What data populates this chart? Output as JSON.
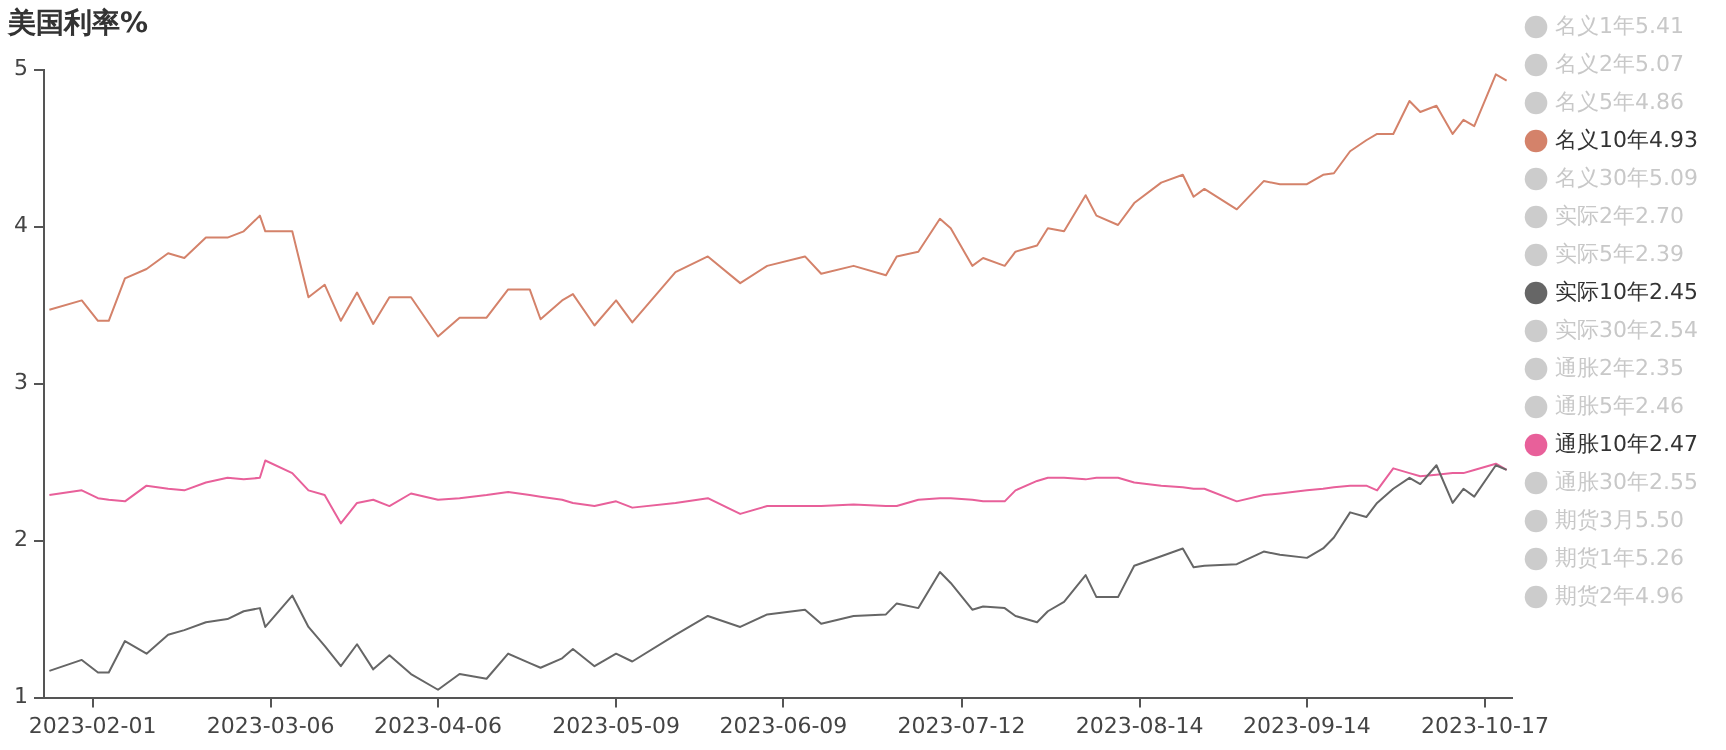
{
  "chart_data": {
    "type": "line",
    "title": "美国利率%",
    "marker": "none",
    "line_style": "solid",
    "grid": false,
    "legend": "right",
    "xlim": [
      "2023-01-23",
      "2023-10-22"
    ],
    "xticks": [
      "2023-02-01",
      "2023-03-06",
      "2023-04-06",
      "2023-05-09",
      "2023-06-09",
      "2023-07-12",
      "2023-08-14",
      "2023-09-14",
      "2023-10-17"
    ],
    "ylim": [
      1,
      5
    ],
    "yticks": [
      1,
      2,
      3,
      4,
      5
    ],
    "x": [
      "2023-01-24",
      "2023-01-30",
      "2023-02-02",
      "2023-02-04",
      "2023-02-07",
      "2023-02-11",
      "2023-02-15",
      "2023-02-18",
      "2023-02-22",
      "2023-02-26",
      "2023-03-01",
      "2023-03-04",
      "2023-03-05",
      "2023-03-10",
      "2023-03-13",
      "2023-03-16",
      "2023-03-19",
      "2023-03-22",
      "2023-03-25",
      "2023-03-28",
      "2023-04-01",
      "2023-04-06",
      "2023-04-10",
      "2023-04-15",
      "2023-04-19",
      "2023-04-23",
      "2023-04-25",
      "2023-04-29",
      "2023-05-01",
      "2023-05-05",
      "2023-05-09",
      "2023-05-12",
      "2023-05-20",
      "2023-05-26",
      "2023-06-01",
      "2023-06-06",
      "2023-06-13",
      "2023-06-16",
      "2023-06-22",
      "2023-06-28",
      "2023-06-30",
      "2023-07-04",
      "2023-07-08",
      "2023-07-10",
      "2023-07-14",
      "2023-07-16",
      "2023-07-20",
      "2023-07-22",
      "2023-07-26",
      "2023-07-28",
      "2023-07-31",
      "2023-08-04",
      "2023-08-06",
      "2023-08-10",
      "2023-08-13",
      "2023-08-18",
      "2023-08-22",
      "2023-08-24",
      "2023-08-26",
      "2023-09-01",
      "2023-09-06",
      "2023-09-09",
      "2023-09-14",
      "2023-09-17",
      "2023-09-19",
      "2023-09-22",
      "2023-09-25",
      "2023-09-27",
      "2023-09-30",
      "2023-10-03",
      "2023-10-05",
      "2023-10-08",
      "2023-10-11",
      "2023-10-13",
      "2023-10-15",
      "2023-10-19",
      "2023-10-21"
    ],
    "series": [
      {
        "name": "名义1年5.41",
        "color": "#cccccc",
        "values": [
          null,
          null,
          null,
          null,
          null,
          null,
          null,
          null,
          null,
          null,
          null,
          null,
          null,
          null,
          null,
          null,
          null,
          null,
          null,
          null,
          null,
          null,
          null,
          null,
          null,
          null,
          null,
          null,
          null,
          null,
          null,
          null,
          null,
          null,
          null,
          null,
          null,
          null,
          null,
          null,
          null,
          null,
          null,
          null,
          null,
          null,
          null,
          null,
          null,
          null,
          null,
          null,
          null,
          null,
          null,
          null,
          null,
          null,
          null,
          null,
          null,
          null,
          null,
          null,
          null,
          null,
          null,
          null,
          null,
          null,
          null,
          null,
          null,
          null,
          null,
          null,
          null
        ]
      },
      {
        "name": "名义2年5.07",
        "color": "#cccccc",
        "values": [
          null,
          null,
          null,
          null,
          null,
          null,
          null,
          null,
          null,
          null,
          null,
          null,
          null,
          null,
          null,
          null,
          null,
          null,
          null,
          null,
          null,
          null,
          null,
          null,
          null,
          null,
          null,
          null,
          null,
          null,
          null,
          null,
          null,
          null,
          null,
          null,
          null,
          null,
          null,
          null,
          null,
          null,
          null,
          null,
          null,
          null,
          null,
          null,
          null,
          null,
          null,
          null,
          null,
          null,
          null,
          null,
          null,
          null,
          null,
          null,
          null,
          null,
          null,
          null,
          null,
          null,
          null,
          null,
          null,
          null,
          null,
          null,
          null,
          null,
          null,
          null,
          null
        ]
      },
      {
        "name": "名义5年4.86",
        "color": "#cccccc",
        "values": [
          null,
          null,
          null,
          null,
          null,
          null,
          null,
          null,
          null,
          null,
          null,
          null,
          null,
          null,
          null,
          null,
          null,
          null,
          null,
          null,
          null,
          null,
          null,
          null,
          null,
          null,
          null,
          null,
          null,
          null,
          null,
          null,
          null,
          null,
          null,
          null,
          null,
          null,
          null,
          null,
          null,
          null,
          null,
          null,
          null,
          null,
          null,
          null,
          null,
          null,
          null,
          null,
          null,
          null,
          null,
          null,
          null,
          null,
          null,
          null,
          null,
          null,
          null,
          null,
          null,
          null,
          null,
          null,
          null,
          null,
          null,
          null,
          null,
          null,
          null,
          null,
          null
        ]
      },
      {
        "name": "名义10年4.93",
        "color": "#d4826a",
        "values": [
          3.47,
          3.53,
          3.4,
          3.4,
          3.67,
          3.73,
          3.83,
          3.8,
          3.93,
          3.93,
          3.97,
          4.07,
          3.97,
          3.97,
          3.55,
          3.63,
          3.4,
          3.58,
          3.38,
          3.55,
          3.55,
          3.3,
          3.42,
          3.42,
          3.6,
          3.6,
          3.41,
          3.53,
          3.57,
          3.37,
          3.53,
          3.39,
          3.71,
          3.81,
          3.64,
          3.75,
          3.81,
          3.7,
          3.75,
          3.69,
          3.81,
          3.84,
          4.05,
          3.99,
          3.75,
          3.8,
          3.75,
          3.84,
          3.88,
          3.99,
          3.97,
          4.2,
          4.07,
          4.01,
          4.15,
          4.28,
          4.33,
          4.19,
          4.24,
          4.11,
          4.29,
          4.27,
          4.27,
          4.33,
          4.34,
          4.48,
          4.55,
          4.59,
          4.59,
          4.8,
          4.73,
          4.77,
          4.59,
          4.68,
          4.64,
          4.97,
          4.93
        ]
      },
      {
        "name": "名义30年5.09",
        "color": "#cccccc",
        "values": [
          null,
          null,
          null,
          null,
          null,
          null,
          null,
          null,
          null,
          null,
          null,
          null,
          null,
          null,
          null,
          null,
          null,
          null,
          null,
          null,
          null,
          null,
          null,
          null,
          null,
          null,
          null,
          null,
          null,
          null,
          null,
          null,
          null,
          null,
          null,
          null,
          null,
          null,
          null,
          null,
          null,
          null,
          null,
          null,
          null,
          null,
          null,
          null,
          null,
          null,
          null,
          null,
          null,
          null,
          null,
          null,
          null,
          null,
          null,
          null,
          null,
          null,
          null,
          null,
          null,
          null,
          null,
          null,
          null,
          null,
          null,
          null,
          null,
          null,
          null,
          null,
          null
        ]
      },
      {
        "name": "实际2年2.70",
        "color": "#cccccc",
        "values": [
          null,
          null,
          null,
          null,
          null,
          null,
          null,
          null,
          null,
          null,
          null,
          null,
          null,
          null,
          null,
          null,
          null,
          null,
          null,
          null,
          null,
          null,
          null,
          null,
          null,
          null,
          null,
          null,
          null,
          null,
          null,
          null,
          null,
          null,
          null,
          null,
          null,
          null,
          null,
          null,
          null,
          null,
          null,
          null,
          null,
          null,
          null,
          null,
          null,
          null,
          null,
          null,
          null,
          null,
          null,
          null,
          null,
          null,
          null,
          null,
          null,
          null,
          null,
          null,
          null,
          null,
          null,
          null,
          null,
          null,
          null,
          null,
          null,
          null,
          null,
          null,
          null
        ]
      },
      {
        "name": "实际5年2.39",
        "color": "#cccccc",
        "values": [
          null,
          null,
          null,
          null,
          null,
          null,
          null,
          null,
          null,
          null,
          null,
          null,
          null,
          null,
          null,
          null,
          null,
          null,
          null,
          null,
          null,
          null,
          null,
          null,
          null,
          null,
          null,
          null,
          null,
          null,
          null,
          null,
          null,
          null,
          null,
          null,
          null,
          null,
          null,
          null,
          null,
          null,
          null,
          null,
          null,
          null,
          null,
          null,
          null,
          null,
          null,
          null,
          null,
          null,
          null,
          null,
          null,
          null,
          null,
          null,
          null,
          null,
          null,
          null,
          null,
          null,
          null,
          null,
          null,
          null,
          null,
          null,
          null,
          null,
          null,
          null,
          null
        ]
      },
      {
        "name": "实际10年2.45",
        "color": "#666666",
        "values": [
          1.17,
          1.24,
          1.16,
          1.16,
          1.36,
          1.28,
          1.4,
          1.43,
          1.48,
          1.5,
          1.55,
          1.57,
          1.45,
          1.65,
          1.45,
          1.33,
          1.2,
          1.34,
          1.18,
          1.27,
          1.15,
          1.05,
          1.15,
          1.12,
          1.28,
          1.22,
          1.19,
          1.25,
          1.31,
          1.2,
          1.28,
          1.23,
          1.4,
          1.52,
          1.45,
          1.53,
          1.56,
          1.47,
          1.52,
          1.53,
          1.6,
          1.57,
          1.8,
          1.73,
          1.56,
          1.58,
          1.57,
          1.52,
          1.48,
          1.55,
          1.61,
          1.78,
          1.64,
          1.64,
          1.84,
          1.9,
          1.95,
          1.83,
          1.84,
          1.85,
          1.93,
          1.91,
          1.89,
          1.95,
          2.02,
          2.18,
          2.15,
          2.24,
          2.33,
          2.4,
          2.36,
          2.48,
          2.24,
          2.33,
          2.28,
          2.48,
          2.45
        ]
      },
      {
        "name": "实际30年2.54",
        "color": "#cccccc",
        "values": [
          null,
          null,
          null,
          null,
          null,
          null,
          null,
          null,
          null,
          null,
          null,
          null,
          null,
          null,
          null,
          null,
          null,
          null,
          null,
          null,
          null,
          null,
          null,
          null,
          null,
          null,
          null,
          null,
          null,
          null,
          null,
          null,
          null,
          null,
          null,
          null,
          null,
          null,
          null,
          null,
          null,
          null,
          null,
          null,
          null,
          null,
          null,
          null,
          null,
          null,
          null,
          null,
          null,
          null,
          null,
          null,
          null,
          null,
          null,
          null,
          null,
          null,
          null,
          null,
          null,
          null,
          null,
          null,
          null,
          null,
          null,
          null,
          null,
          null,
          null,
          null,
          null
        ]
      },
      {
        "name": "通胀2年2.35",
        "color": "#cccccc",
        "values": [
          null,
          null,
          null,
          null,
          null,
          null,
          null,
          null,
          null,
          null,
          null,
          null,
          null,
          null,
          null,
          null,
          null,
          null,
          null,
          null,
          null,
          null,
          null,
          null,
          null,
          null,
          null,
          null,
          null,
          null,
          null,
          null,
          null,
          null,
          null,
          null,
          null,
          null,
          null,
          null,
          null,
          null,
          null,
          null,
          null,
          null,
          null,
          null,
          null,
          null,
          null,
          null,
          null,
          null,
          null,
          null,
          null,
          null,
          null,
          null,
          null,
          null,
          null,
          null,
          null,
          null,
          null,
          null,
          null,
          null,
          null,
          null,
          null,
          null,
          null,
          null,
          null
        ]
      },
      {
        "name": "通胀5年2.46",
        "color": "#cccccc",
        "values": [
          null,
          null,
          null,
          null,
          null,
          null,
          null,
          null,
          null,
          null,
          null,
          null,
          null,
          null,
          null,
          null,
          null,
          null,
          null,
          null,
          null,
          null,
          null,
          null,
          null,
          null,
          null,
          null,
          null,
          null,
          null,
          null,
          null,
          null,
          null,
          null,
          null,
          null,
          null,
          null,
          null,
          null,
          null,
          null,
          null,
          null,
          null,
          null,
          null,
          null,
          null,
          null,
          null,
          null,
          null,
          null,
          null,
          null,
          null,
          null,
          null,
          null,
          null,
          null,
          null,
          null,
          null,
          null,
          null,
          null,
          null,
          null,
          null,
          null,
          null,
          null,
          null
        ]
      },
      {
        "name": "通胀10年2.47",
        "color": "#e8609a",
        "values": [
          2.29,
          2.32,
          2.27,
          2.26,
          2.25,
          2.35,
          2.33,
          2.32,
          2.37,
          2.4,
          2.39,
          2.4,
          2.51,
          2.43,
          2.32,
          2.29,
          2.11,
          2.24,
          2.26,
          2.22,
          2.3,
          2.26,
          2.27,
          2.29,
          2.31,
          2.29,
          2.28,
          2.26,
          2.24,
          2.22,
          2.25,
          2.21,
          2.24,
          2.27,
          2.17,
          2.22,
          2.22,
          2.22,
          2.23,
          2.22,
          2.22,
          2.26,
          2.27,
          2.27,
          2.26,
          2.25,
          2.25,
          2.32,
          2.38,
          2.4,
          2.4,
          2.39,
          2.4,
          2.4,
          2.37,
          2.35,
          2.34,
          2.33,
          2.33,
          2.25,
          2.29,
          2.3,
          2.32,
          2.33,
          2.34,
          2.35,
          2.35,
          2.32,
          2.46,
          2.43,
          2.41,
          2.42,
          2.43,
          2.43,
          2.45,
          2.49,
          2.45
        ]
      },
      {
        "name": "通胀30年2.55",
        "color": "#cccccc",
        "values": [
          null,
          null,
          null,
          null,
          null,
          null,
          null,
          null,
          null,
          null,
          null,
          null,
          null,
          null,
          null,
          null,
          null,
          null,
          null,
          null,
          null,
          null,
          null,
          null,
          null,
          null,
          null,
          null,
          null,
          null,
          null,
          null,
          null,
          null,
          null,
          null,
          null,
          null,
          null,
          null,
          null,
          null,
          null,
          null,
          null,
          null,
          null,
          null,
          null,
          null,
          null,
          null,
          null,
          null,
          null,
          null,
          null,
          null,
          null,
          null,
          null,
          null,
          null,
          null,
          null,
          null,
          null,
          null,
          null,
          null,
          null,
          null,
          null,
          null,
          null,
          null,
          null
        ]
      },
      {
        "name": "期货3月5.50",
        "color": "#cccccc",
        "values": [
          null,
          null,
          null,
          null,
          null,
          null,
          null,
          null,
          null,
          null,
          null,
          null,
          null,
          null,
          null,
          null,
          null,
          null,
          null,
          null,
          null,
          null,
          null,
          null,
          null,
          null,
          null,
          null,
          null,
          null,
          null,
          null,
          null,
          null,
          null,
          null,
          null,
          null,
          null,
          null,
          null,
          null,
          null,
          null,
          null,
          null,
          null,
          null,
          null,
          null,
          null,
          null,
          null,
          null,
          null,
          null,
          null,
          null,
          null,
          null,
          null,
          null,
          null,
          null,
          null,
          null,
          null,
          null,
          null,
          null,
          null,
          null,
          null,
          null,
          null,
          null,
          null
        ]
      },
      {
        "name": "期货1年5.26",
        "color": "#cccccc",
        "values": [
          null,
          null,
          null,
          null,
          null,
          null,
          null,
          null,
          null,
          null,
          null,
          null,
          null,
          null,
          null,
          null,
          null,
          null,
          null,
          null,
          null,
          null,
          null,
          null,
          null,
          null,
          null,
          null,
          null,
          null,
          null,
          null,
          null,
          null,
          null,
          null,
          null,
          null,
          null,
          null,
          null,
          null,
          null,
          null,
          null,
          null,
          null,
          null,
          null,
          null,
          null,
          null,
          null,
          null,
          null,
          null,
          null,
          null,
          null,
          null,
          null,
          null,
          null,
          null,
          null,
          null,
          null,
          null,
          null,
          null,
          null,
          null,
          null,
          null,
          null,
          null,
          null
        ]
      },
      {
        "name": "期货2年4.96",
        "color": "#cccccc",
        "values": [
          null,
          null,
          null,
          null,
          null,
          null,
          null,
          null,
          null,
          null,
          null,
          null,
          null,
          null,
          null,
          null,
          null,
          null,
          null,
          null,
          null,
          null,
          null,
          null,
          null,
          null,
          null,
          null,
          null,
          null,
          null,
          null,
          null,
          null,
          null,
          null,
          null,
          null,
          null,
          null,
          null,
          null,
          null,
          null,
          null,
          null,
          null,
          null,
          null,
          null,
          null,
          null,
          null,
          null,
          null,
          null,
          null,
          null,
          null,
          null,
          null,
          null,
          null,
          null,
          null,
          null,
          null,
          null,
          null,
          null,
          null,
          null,
          null,
          null,
          null,
          null,
          null
        ]
      }
    ]
  }
}
